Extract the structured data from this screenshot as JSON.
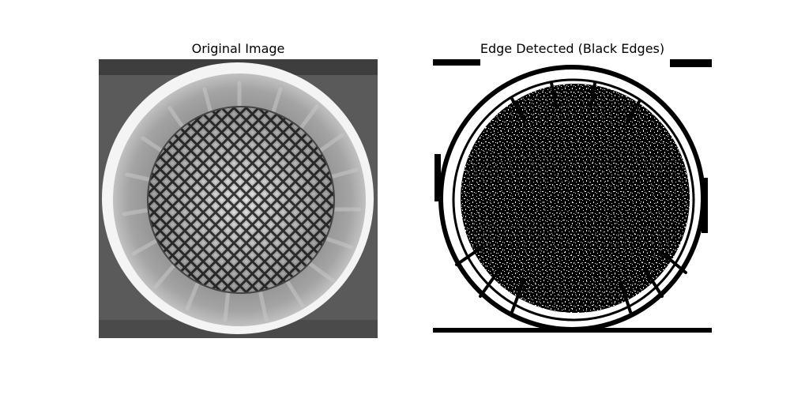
{
  "figure": {
    "panels": [
      {
        "title": "Original Image",
        "image": "grayscale-speaker-grille-photo"
      },
      {
        "title": "Edge Detected (Black Edges)",
        "image": "binary-edge-map-of-speaker-grille"
      }
    ]
  }
}
